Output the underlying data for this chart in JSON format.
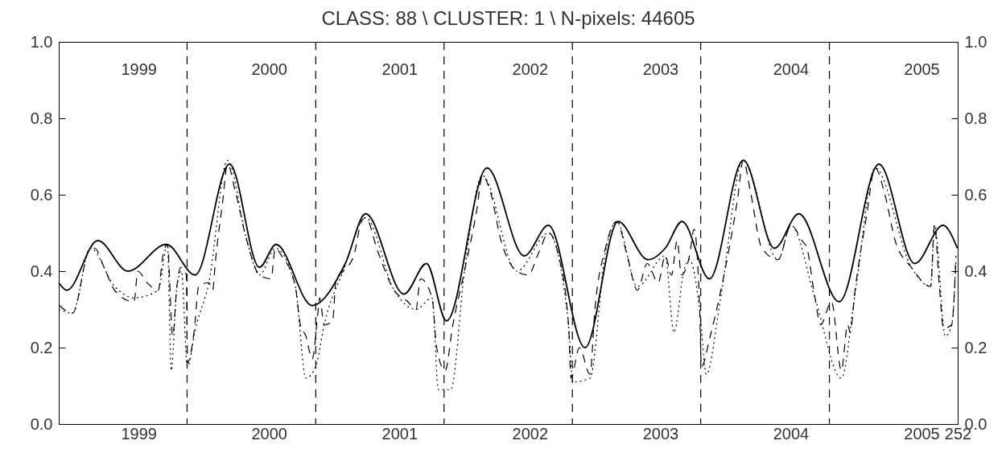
{
  "chart_data": {
    "type": "line",
    "title": "CLASS: 88 \\  CLUSTER:  1 \\ N-pixels:   44605",
    "xlim": [
      "1999-01-01",
      "2006-01-01"
    ],
    "xticks": [
      {
        "value": "1999-08-16",
        "label": "1999"
      },
      {
        "value": "2000-08-21",
        "label": "2000"
      },
      {
        "value": "2001-08-27",
        "label": "2001"
      },
      {
        "value": "2002-09-02",
        "label": "2002"
      },
      {
        "value": "2003-09-08",
        "label": "2003"
      },
      {
        "value": "2004-09-13",
        "label": "2004"
      },
      {
        "value": "2005-09-20",
        "label": "2005"
      },
      {
        "value": "2006-01-01",
        "label": "252"
      }
    ],
    "x2lim": [
      "1999-01-01",
      "2006-01-01"
    ],
    "x2ticks": [
      {
        "value": "1999-08-16",
        "label": "1999"
      },
      {
        "value": "2000-08-21",
        "label": "2000"
      },
      {
        "value": "2001-08-27",
        "label": "2001"
      },
      {
        "value": "2002-09-02",
        "label": "2002"
      },
      {
        "value": "2003-09-08",
        "label": "2003"
      },
      {
        "value": "2004-09-13",
        "label": "2004"
      },
      {
        "value": "2005-09-20",
        "label": "2005"
      }
    ],
    "ylim": [
      0,
      1
    ],
    "yticks": [
      {
        "value": 0,
        "label": "0.0"
      },
      0.2,
      0.4,
      0.6,
      0.8,
      {
        "value": 1,
        "label": "1.0"
      }
    ],
    "y2lim": [
      0,
      1
    ],
    "y2ticks": [
      {
        "value": 0,
        "label": "0.0"
      },
      0.2,
      0.4,
      0.6,
      0.8,
      {
        "value": 1,
        "label": "1.0"
      }
    ],
    "ref_lines": [
      {
        "axis": "x",
        "value": "2000-01-01",
        "line_style": "dashed",
        "color": "#000000"
      },
      {
        "axis": "x",
        "value": "2001-01-01",
        "line_style": "dashed",
        "color": "#000000"
      },
      {
        "axis": "x",
        "value": "2002-01-01",
        "line_style": "dashed",
        "color": "#000000"
      },
      {
        "axis": "x",
        "value": "2003-01-01",
        "line_style": "dashed",
        "color": "#000000"
      },
      {
        "axis": "x",
        "value": "2004-01-01",
        "line_style": "dashed",
        "color": "#000000"
      },
      {
        "axis": "x",
        "value": "2005-01-01",
        "line_style": "dashed",
        "color": "#000000"
      }
    ],
    "series": [
      {
        "color": "#000000",
        "line_style": "solid",
        "x": [
          "1999-01-01",
          "1999-01-24",
          "1999-04-22",
          "1999-07-17",
          "1999-11-03",
          "2000-01-24",
          "2000-05-01",
          "2000-07-25",
          "2000-09-10",
          "2000-12-22",
          "2001-03-26",
          "2001-05-23",
          "2001-09-09",
          "2001-11-12",
          "2002-01-08",
          "2002-05-03",
          "2002-08-17",
          "2002-10-25",
          "2003-02-06",
          "2003-05-11",
          "2003-08-04",
          "2003-09-22",
          "2003-11-09",
          "2004-01-26",
          "2004-05-01",
          "2004-07-29",
          "2004-10-06",
          "2005-01-29",
          "2005-05-22",
          "2005-09-01",
          "2005-11-20",
          "2005-12-31"
        ],
        "values": [
          0.37,
          0.35,
          0.48,
          0.4,
          0.47,
          0.39,
          0.68,
          0.41,
          0.47,
          0.31,
          0.42,
          0.55,
          0.34,
          0.42,
          0.27,
          0.67,
          0.44,
          0.52,
          0.2,
          0.53,
          0.43,
          0.46,
          0.53,
          0.38,
          0.69,
          0.46,
          0.55,
          0.32,
          0.68,
          0.42,
          0.52,
          0.46
        ]
      },
      {
        "color": "#000000",
        "line_style": "dashed",
        "axis": "y2",
        "x": [
          "1999-01-03",
          "1999-02-09",
          "1999-04-01",
          "1999-04-13",
          "1999-05-10",
          "1999-06-09",
          "1999-08-03",
          "1999-08-14",
          "1999-09-09",
          "1999-10-11",
          "1999-10-24",
          "1999-11-06",
          "1999-11-21",
          "1999-12-03",
          "1999-12-14",
          "1999-12-30",
          "2000-01-02",
          "2000-01-22",
          "2000-02-03",
          "2000-03-03",
          "2000-03-14",
          "2000-03-21",
          "2000-04-11",
          "2000-04-25",
          "2000-05-17",
          "2000-06-19",
          "2000-07-25",
          "2000-08-27",
          "2000-09-08",
          "2000-09-26",
          "2000-11-04",
          "2000-11-18",
          "2000-12-04",
          "2000-12-22",
          "2001-01-07",
          "2001-01-12",
          "2001-01-25",
          "2001-02-18",
          "2001-02-28",
          "2001-03-20",
          "2001-04-19",
          "2001-05-11",
          "2001-05-23",
          "2001-06-27",
          "2001-08-12",
          "2001-09-20",
          "2001-10-13",
          "2001-10-26",
          "2001-11-28",
          "2001-12-11",
          "2002-01-04",
          "2002-01-26",
          "2002-02-28",
          "2002-04-04",
          "2002-04-20",
          "2002-05-12",
          "2002-06-12",
          "2002-07-27",
          "2002-08-28",
          "2002-09-28",
          "2002-10-25",
          "2002-11-20",
          "2002-12-21",
          "2002-12-28",
          "2003-01-21",
          "2003-02-20",
          "2003-03-06",
          "2003-04-05",
          "2003-05-07",
          "2003-06-06",
          "2003-07-05",
          "2003-08-02",
          "2003-09-02",
          "2003-09-22",
          "2003-10-10",
          "2003-10-26",
          "2003-11-07",
          "2003-11-30",
          "2003-12-13",
          "2003-12-29",
          "2004-01-03",
          "2004-01-28",
          "2004-02-25",
          "2004-03-22",
          "2004-04-15",
          "2004-05-01",
          "2004-05-21",
          "2004-06-23",
          "2004-08-08",
          "2004-09-14",
          "2004-10-15",
          "2004-10-29",
          "2004-11-21",
          "2004-12-07",
          "2005-01-07",
          "2005-02-04",
          "2005-02-22",
          "2005-03-01",
          "2005-03-15",
          "2005-04-16",
          "2005-05-11",
          "2005-06-08",
          "2005-07-07",
          "2005-08-22",
          "2005-10-16",
          "2005-10-27",
          "2005-11-09",
          "2005-11-22",
          "2005-12-15",
          "2005-12-27"
        ],
        "values": [
          0.31,
          0.29,
          0.46,
          0.46,
          0.41,
          0.35,
          0.32,
          0.4,
          0.37,
          0.35,
          0.44,
          0.47,
          0.23,
          0.36,
          0.41,
          0.39,
          0.16,
          0.25,
          0.36,
          0.37,
          0.35,
          0.42,
          0.58,
          0.68,
          0.61,
          0.48,
          0.39,
          0.38,
          0.46,
          0.44,
          0.36,
          0.26,
          0.23,
          0.17,
          0.29,
          0.33,
          0.26,
          0.27,
          0.38,
          0.4,
          0.44,
          0.53,
          0.54,
          0.45,
          0.35,
          0.32,
          0.3,
          0.38,
          0.33,
          0.2,
          0.14,
          0.26,
          0.4,
          0.56,
          0.65,
          0.61,
          0.48,
          0.4,
          0.39,
          0.45,
          0.5,
          0.45,
          0.26,
          0.12,
          0.2,
          0.13,
          0.3,
          0.46,
          0.53,
          0.44,
          0.35,
          0.42,
          0.37,
          0.44,
          0.39,
          0.48,
          0.39,
          0.44,
          0.51,
          0.3,
          0.15,
          0.23,
          0.34,
          0.46,
          0.59,
          0.69,
          0.61,
          0.46,
          0.43,
          0.52,
          0.48,
          0.46,
          0.33,
          0.26,
          0.32,
          0.14,
          0.26,
          0.24,
          0.35,
          0.54,
          0.67,
          0.6,
          0.48,
          0.41,
          0.36,
          0.52,
          0.37,
          0.25,
          0.26,
          0.44
        ]
      },
      {
        "color": "#000000",
        "line_style": "dotted",
        "x": [
          "1999-01-01",
          "1999-02-09",
          "1999-04-01",
          "1999-06-09",
          "1999-08-03",
          "1999-10-11",
          "1999-11-06",
          "1999-11-17",
          "1999-12-03",
          "1999-12-16",
          "2000-01-02",
          "2000-01-25",
          "2000-03-03",
          "2000-04-25",
          "2000-06-19",
          "2000-07-25",
          "2000-09-08",
          "2000-11-04",
          "2000-12-04",
          "2001-01-01",
          "2001-01-25",
          "2001-03-20",
          "2001-05-23",
          "2001-08-12",
          "2001-10-13",
          "2001-11-28",
          "2001-12-16",
          "2002-01-20",
          "2002-02-28",
          "2002-04-20",
          "2002-07-27",
          "2002-10-25",
          "2002-12-21",
          "2003-01-02",
          "2003-02-20",
          "2003-04-05",
          "2003-05-07",
          "2003-07-05",
          "2003-09-22",
          "2003-10-17",
          "2003-11-14",
          "2003-11-30",
          "2003-12-29",
          "2004-01-17",
          "2004-02-25",
          "2004-05-01",
          "2004-08-08",
          "2004-09-14",
          "2004-11-21",
          "2005-02-04",
          "2005-03-15",
          "2005-05-11",
          "2005-08-22",
          "2005-10-16",
          "2005-10-27",
          "2005-11-27",
          "2005-12-15",
          "2005-12-27"
        ],
        "values": [
          0.3,
          0.29,
          0.46,
          0.36,
          0.33,
          0.35,
          0.47,
          0.14,
          0.36,
          0.4,
          0.15,
          0.25,
          0.37,
          0.69,
          0.48,
          0.39,
          0.46,
          0.36,
          0.12,
          0.15,
          0.26,
          0.4,
          0.54,
          0.35,
          0.3,
          0.33,
          0.09,
          0.09,
          0.4,
          0.65,
          0.4,
          0.5,
          0.26,
          0.11,
          0.12,
          0.45,
          0.53,
          0.36,
          0.44,
          0.24,
          0.4,
          0.43,
          0.3,
          0.13,
          0.32,
          0.69,
          0.43,
          0.52,
          0.33,
          0.12,
          0.34,
          0.67,
          0.41,
          0.36,
          0.52,
          0.23,
          0.26,
          0.43
        ]
      }
    ]
  }
}
